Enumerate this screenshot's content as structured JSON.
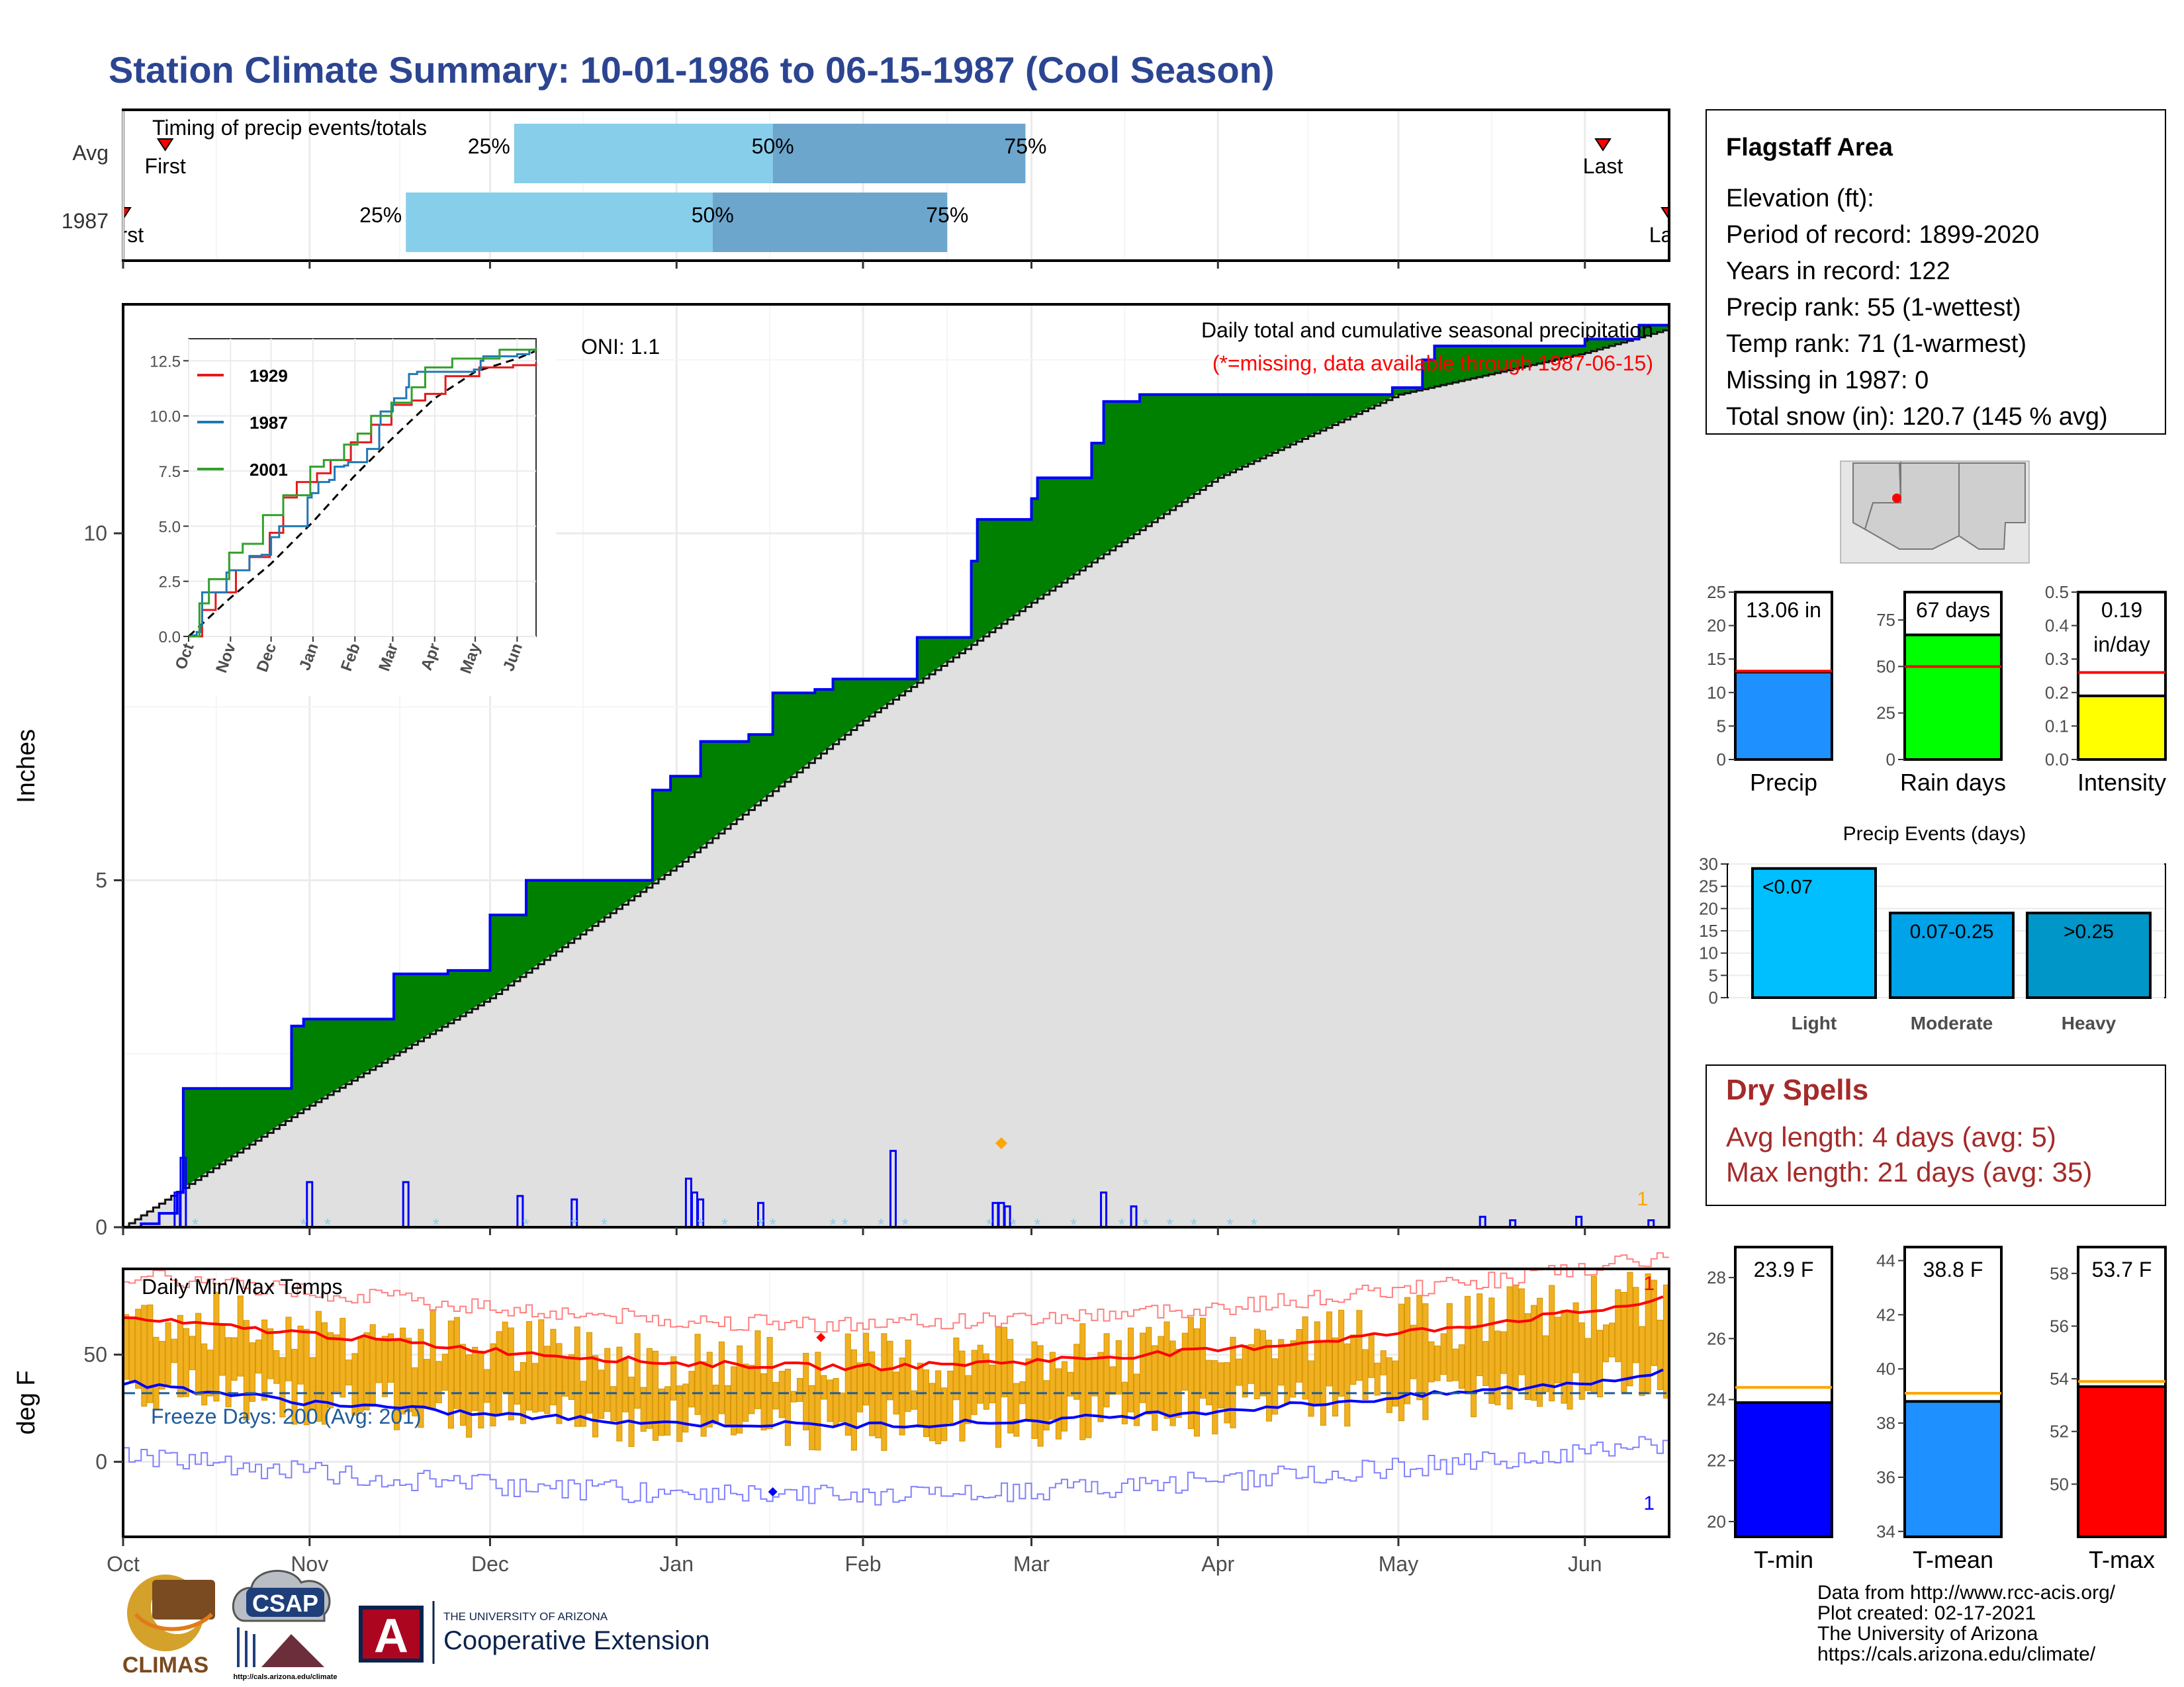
{
  "title": "Station Climate Summary: 10-01-1986 to 06-15-1987 (Cool Season)",
  "timing": {
    "caption": "Timing of precip events/totals",
    "rows": [
      {
        "label": "Avg",
        "first_label": "First",
        "last_label": "Last",
        "first_day": 7,
        "last_day": 246,
        "p25_day": 65,
        "p50_day": 108,
        "p75_day": 150,
        "p25_label": "25%",
        "p50_label": "50%",
        "p75_label": "75%"
      },
      {
        "label": "1987",
        "first_label": "First",
        "last_label": "Last",
        "first_day": 0,
        "last_day": 257,
        "p25_day": 47,
        "p50_day": 98,
        "p75_day": 137,
        "p25_label": "25%",
        "p50_label": "50%",
        "p75_label": "75%"
      }
    ]
  },
  "precip_panel": {
    "ylabel": "Inches",
    "title_line1": "Daily total and cumulative seasonal precipitation",
    "title_line2": "(*=missing, data available through 1987-06-15)",
    "oni_label": "ONI: 1.1",
    "right_marker": "1",
    "colors": {
      "above_avg": "#008000",
      "below_avg": "#8b5a2b",
      "avg_fill": "#e0e0e0",
      "line_1987": "#0000ff",
      "daily_bar": "#0000ff",
      "snow_marker": "#87ceeb",
      "max_marker": "#ffa500"
    }
  },
  "inset": {
    "series": [
      {
        "name": "1929",
        "color": "#e31a1c"
      },
      {
        "name": "1987",
        "color": "#1f78b4"
      },
      {
        "name": "2001",
        "color": "#33a02c"
      }
    ],
    "yticks": [
      "0.0",
      "2.5",
      "5.0",
      "7.5",
      "10.0",
      "12.5"
    ],
    "xticks": [
      "Oct",
      "Nov",
      "Dec",
      "Jan",
      "Feb",
      "Mar",
      "Apr",
      "May",
      "Jun"
    ]
  },
  "temp_panel": {
    "ylabel": "deg F",
    "title": "Daily Min/Max Temps",
    "freeze_label": "Freeze Days: 200 (Avg: 201)",
    "top_marker": "1",
    "bottom_marker": "1",
    "yticks": [
      "0",
      "50"
    ]
  },
  "x_months": [
    "Oct",
    "Nov",
    "Dec",
    "Jan",
    "Feb",
    "Mar",
    "Apr",
    "May",
    "Jun"
  ],
  "precip_yticks": [
    "0",
    "5",
    "10"
  ],
  "station": {
    "name": "Flagstaff Area",
    "lines": [
      "Elevation (ft):",
      "Period of record: 1899-2020",
      "Years in record: 122",
      "Precip rank: 55 (1-wettest)",
      "Temp rank: 71 (1-warmest)",
      "Missing in 1987: 0",
      "Total snow (in): 120.7 (145 % avg)"
    ]
  },
  "summary_bars": [
    {
      "label": "Precip",
      "value_label": "13.06 in",
      "value": 13.06,
      "avg": 13.2,
      "ymax": 25,
      "ticks": [
        "0",
        "5",
        "10",
        "15",
        "20",
        "25"
      ],
      "color": "#1e90ff"
    },
    {
      "label": "Rain days",
      "value_label": "67 days",
      "value": 67,
      "avg": 50,
      "ymax": 90,
      "ticks": [
        "0",
        "25",
        "50",
        "75"
      ],
      "color": "#00ff00"
    },
    {
      "label": "Intensity",
      "value_label": "0.19",
      "value_label2": "in/day",
      "value": 0.19,
      "avg": 0.26,
      "ymax": 0.5,
      "ticks": [
        "0.0",
        "0.1",
        "0.2",
        "0.3",
        "0.4",
        "0.5"
      ],
      "color": "#ffff00"
    }
  ],
  "events": {
    "title": "Precip Events (days)",
    "ticks": [
      "0",
      "5",
      "10",
      "15",
      "20",
      "25",
      "30"
    ],
    "bars": [
      {
        "label": "Light",
        "range": "<0.07",
        "value": 29,
        "color": "#00bfff"
      },
      {
        "label": "Moderate",
        "range": "0.07-0.25",
        "value": 19,
        "color": "#00a2e8"
      },
      {
        "label": "Heavy",
        "range": ">0.25",
        "value": 19,
        "color": "#0096c7"
      }
    ]
  },
  "dry_spells": {
    "title": "Dry Spells",
    "avg_line": "Avg length: 4 days (avg: 5)",
    "max_line": "Max length: 21 days (avg: 35)"
  },
  "temp_bars": [
    {
      "label": "T-min",
      "value_label": "23.9 F",
      "value": 23.9,
      "avg": 24.4,
      "ymin": 19.5,
      "ymax": 29,
      "ticks": [
        "20",
        "22",
        "24",
        "26",
        "28"
      ],
      "color": "#0000ff"
    },
    {
      "label": "T-mean",
      "value_label": "38.8 F",
      "value": 38.8,
      "avg": 39.1,
      "ymin": 33.8,
      "ymax": 44.5,
      "ticks": [
        "34",
        "36",
        "38",
        "40",
        "42",
        "44"
      ],
      "color": "#1e90ff"
    },
    {
      "label": "T-max",
      "value_label": "53.7 F",
      "value": 53.7,
      "avg": 53.9,
      "ymin": 48,
      "ymax": 59,
      "ticks": [
        "50",
        "52",
        "54",
        "56",
        "58"
      ],
      "color": "#ff0000"
    }
  ],
  "credits": [
    "Data from http://www.rcc-acis.org/",
    "Plot created: 02-17-2021",
    "The University of Arizona",
    "https://cals.arizona.edu/climate/"
  ],
  "logos": {
    "climas": "CLIMAS",
    "csap": "CSAP",
    "csap_url": "http://cals.arizona.edu/climate",
    "ua_line1": "THE UNIVERSITY OF ARIZONA",
    "ua_line2": "Cooperative Extension",
    "ua_letter": "A"
  },
  "chart_data": {
    "type": "area",
    "title": "Daily total and cumulative seasonal precipitation",
    "ylabel": "Inches",
    "ylim": [
      0,
      13.3
    ],
    "x_unit": "days since 10-01-1986",
    "cumulative_1987": {
      "x": [
        0,
        3,
        6,
        9,
        10,
        14,
        22,
        28,
        30,
        36,
        45,
        53,
        54,
        61,
        67,
        78,
        88,
        91,
        96,
        104,
        108,
        115,
        118,
        132,
        141,
        142,
        151,
        152,
        161,
        163,
        169,
        172,
        183,
        200,
        211,
        216,
        218,
        243,
        252,
        257
      ],
      "y": [
        0,
        0.05,
        0.2,
        0.5,
        2.0,
        2.0,
        2.0,
        2.9,
        3.0,
        3.0,
        3.65,
        3.65,
        3.7,
        4.5,
        5.0,
        5.0,
        6.3,
        6.5,
        7.0,
        7.1,
        7.7,
        7.75,
        7.9,
        8.5,
        9.6,
        10.2,
        10.5,
        10.8,
        11.3,
        11.9,
        12.0,
        12.0,
        12.0,
        12.0,
        12.1,
        12.5,
        12.7,
        12.8,
        13.0,
        13.06
      ]
    },
    "average_cumulative": {
      "x": [
        0,
        30,
        61,
        92,
        123,
        151,
        182,
        212,
        243,
        257
      ],
      "y": [
        0,
        1.7,
        3.3,
        5.2,
        7.3,
        9.0,
        10.8,
        12.0,
        12.6,
        12.95
      ]
    },
    "daily_precip_1987": {
      "x": [
        9,
        10,
        31,
        47,
        66,
        75,
        94,
        95,
        96,
        106,
        128,
        145,
        146,
        147,
        163,
        168,
        226,
        231,
        242,
        254
      ],
      "y": [
        0.5,
        1.0,
        0.65,
        0.65,
        0.45,
        0.4,
        0.7,
        0.5,
        0.4,
        0.35,
        1.1,
        0.35,
        0.35,
        0.3,
        0.5,
        0.3,
        0.15,
        0.1,
        0.15,
        0.1
      ]
    },
    "temps": {
      "ylabel": "deg F",
      "ylim": [
        -35,
        90
      ],
      "avg_max": {
        "x": [
          0,
          30,
          61,
          92,
          123,
          151,
          182,
          212,
          243,
          257
        ],
        "y": [
          67,
          60,
          52,
          46,
          44,
          47,
          52,
          60,
          70,
          76
        ]
      },
      "avg_min": {
        "x": [
          0,
          30,
          61,
          92,
          123,
          151,
          182,
          212,
          243,
          257
        ],
        "y": [
          37,
          28,
          22,
          18,
          17,
          19,
          24,
          30,
          37,
          42
        ]
      },
      "freeze_line": 32
    }
  }
}
